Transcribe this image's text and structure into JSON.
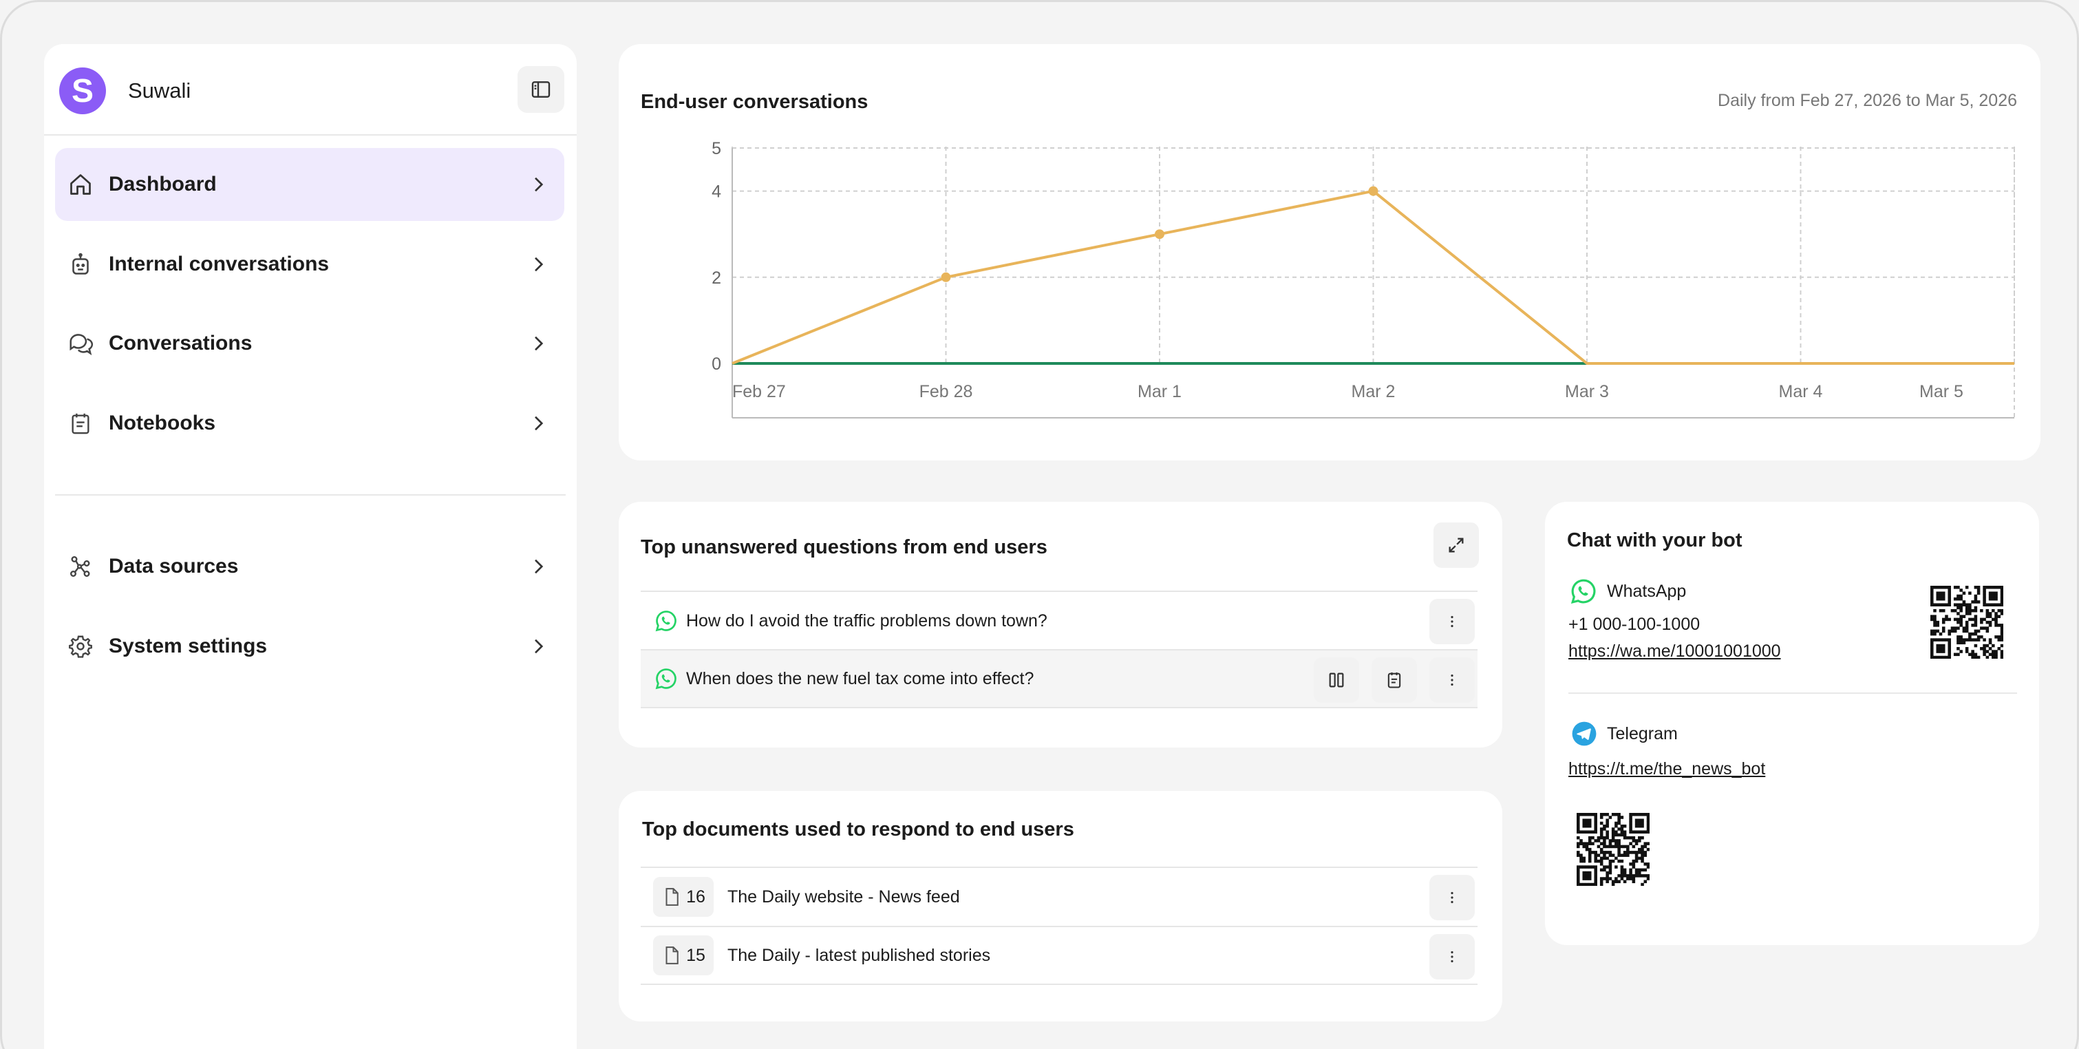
{
  "sidebar": {
    "brand": {
      "initial": "S",
      "name": "Suwali"
    },
    "nav": [
      {
        "label": "Dashboard",
        "icon": "home-icon",
        "active": true
      },
      {
        "label": "Internal conversations",
        "icon": "robot-icon"
      },
      {
        "label": "Conversations",
        "icon": "chat-bubbles-icon"
      },
      {
        "label": "Notebooks",
        "icon": "notebook-icon"
      }
    ],
    "nav2": [
      {
        "label": "Data sources",
        "icon": "data-sources-icon"
      },
      {
        "label": "System settings",
        "icon": "gear-icon"
      }
    ]
  },
  "conversations_chart": {
    "title": "End-user conversations",
    "subtitle": "Daily from Feb 27, 2026 to Mar 5, 2026"
  },
  "chart_data": {
    "type": "line",
    "title": "End-user conversations",
    "subtitle": "Daily from Feb 27, 2026 to Mar 5, 2026",
    "categories": [
      "Feb 27",
      "Feb 28",
      "Mar 1",
      "Mar 2",
      "Mar 3",
      "Mar 4",
      "Mar 5"
    ],
    "series": [
      {
        "color": "#e8b45a",
        "values": [
          0,
          2,
          3,
          4,
          0,
          0,
          0
        ]
      },
      {
        "color": "#1f8a5b",
        "values": [
          0,
          0,
          0,
          0,
          0,
          null,
          null
        ]
      }
    ],
    "yticks": [
      0,
      2,
      4,
      5
    ],
    "ylim": [
      0,
      5
    ],
    "grid": true
  },
  "unanswered": {
    "title": "Top unanswered questions from end users",
    "items": [
      {
        "text": "How do I avoid the traffic problems down town?",
        "channel": "whatsapp-icon"
      },
      {
        "text": "When does the new fuel tax come into effect?",
        "channel": "whatsapp-icon"
      }
    ]
  },
  "documents": {
    "title": "Top documents used to respond to end users",
    "items": [
      {
        "count": "16",
        "name": "The Daily website - News feed"
      },
      {
        "count": "15",
        "name": "The Daily - latest published stories"
      }
    ]
  },
  "bot": {
    "title": "Chat with your bot",
    "whatsapp": {
      "label": "WhatsApp",
      "phone": "+1 000-100-1000",
      "link": "https://wa.me/10001001000"
    },
    "telegram": {
      "label": "Telegram",
      "link": "https://t.me/the_news_bot"
    }
  },
  "colors": {
    "accent": "#8b5cf6",
    "active_bg": "#efeafd",
    "line_main": "#e8b45a",
    "line_secondary": "#1f8a5b",
    "whatsapp": "#25d366",
    "telegram": "#2aa3e0"
  }
}
